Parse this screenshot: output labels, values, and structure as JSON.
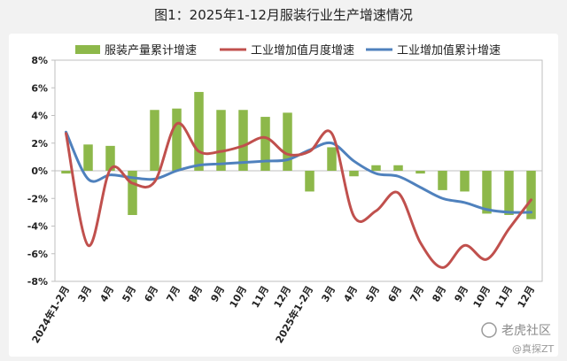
{
  "title": "图1：2025年1-12月服装行业生产增速情况",
  "chart_data": {
    "type": "bar",
    "categories": [
      "2024年1-2月",
      "3月",
      "4月",
      "5月",
      "6月",
      "7月",
      "8月",
      "9月",
      "10月",
      "11月",
      "12月",
      "2025年1-2月",
      "3月",
      "4月",
      "5月",
      "6月",
      "7月",
      "8月",
      "9月",
      "10月",
      "11月",
      "12月"
    ],
    "ylim": [
      -8,
      8
    ],
    "yticks": [
      "8%",
      "6%",
      "4%",
      "2%",
      "0%",
      "-2%",
      "-4%",
      "-6%",
      "-8%"
    ],
    "series": [
      {
        "name": "服装产量累计增速",
        "type": "bar",
        "color": "#8db84a",
        "values": [
          -0.2,
          1.9,
          1.8,
          -3.2,
          4.4,
          4.5,
          5.7,
          4.4,
          4.4,
          3.9,
          4.2,
          -1.5,
          1.7,
          -0.4,
          0.4,
          0.4,
          -0.2,
          -1.4,
          -1.5,
          -3.1,
          -3.2,
          -3.5
        ]
      },
      {
        "name": "工业增加值月度增速",
        "type": "line",
        "color": "#c0504d",
        "values": [
          2.7,
          -5.4,
          0.1,
          -0.9,
          -0.8,
          3.4,
          1.4,
          1.4,
          1.8,
          2.4,
          1.2,
          1.4,
          2.7,
          -3.3,
          -2.9,
          -1.6,
          -5.2,
          -7.0,
          -5.4,
          -6.4,
          -4.2,
          -2.1
        ]
      },
      {
        "name": "工业增加值累计增速",
        "type": "line",
        "color": "#4f81bd",
        "values": [
          2.8,
          -0.6,
          -0.3,
          -0.5,
          -0.6,
          0.0,
          0.4,
          0.5,
          0.6,
          0.7,
          0.8,
          1.5,
          2.0,
          0.7,
          -0.2,
          -0.4,
          -1.2,
          -2.0,
          -2.3,
          -2.8,
          -3.0,
          -3.0
        ]
      }
    ]
  },
  "watermark": {
    "text": "老虎社区",
    "sub": "@真探ZT"
  }
}
